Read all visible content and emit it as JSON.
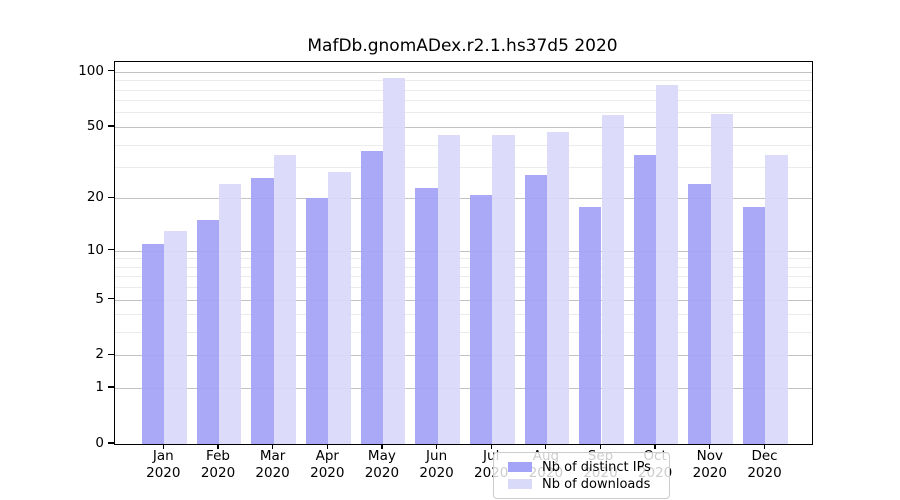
{
  "title": "MafDb.gnomADex.r2.1.hs37d5 2020",
  "legend": {
    "items": [
      {
        "label": "Nb of distinct IPs",
        "color": "#a3a3f7"
      },
      {
        "label": "Nb of downloads",
        "color": "#d9d9fa"
      }
    ]
  },
  "chart_data": {
    "type": "bar",
    "title": "MafDb.gnomADex.r2.1.hs37d5 2020",
    "categories": [
      "Jan",
      "Feb",
      "Mar",
      "Apr",
      "May",
      "Jun",
      "Jul",
      "Aug",
      "Sep",
      "Oct",
      "Nov",
      "Dec"
    ],
    "category_year": "2020",
    "series": [
      {
        "name": "Nb of distinct IPs",
        "color": "#a3a3f7",
        "values": [
          11,
          15,
          26,
          20,
          37,
          23,
          21,
          27,
          18,
          35,
          24,
          18
        ]
      },
      {
        "name": "Nb of downloads",
        "color": "#d9d9fa",
        "values": [
          13,
          24,
          35,
          28,
          93,
          45,
          45,
          47,
          58,
          85,
          59,
          35
        ]
      }
    ],
    "xlabel": "",
    "ylabel": "",
    "y_scale": "log1p",
    "ylim": [
      0,
      113
    ],
    "y_major_ticks": [
      0,
      1,
      2,
      5,
      10,
      20,
      50,
      100
    ],
    "y_minor_gridlines": [
      3,
      4,
      6,
      7,
      8,
      9,
      30,
      40,
      60,
      70,
      80,
      90
    ],
    "grid": "on",
    "legend_position": "lower center inside"
  }
}
